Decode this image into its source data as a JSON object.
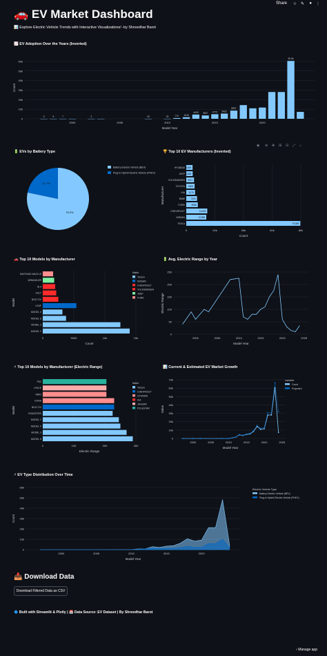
{
  "toolbar": {
    "share": "Share",
    "icons": [
      "star-icon",
      "edit-icon",
      "github-icon",
      "more-icon"
    ]
  },
  "header": {
    "title": "EV Market Dashboard",
    "subtitle": "Explore Electric Vehicle Trends with Interactive Visualizations! -by Shreedhar Barot",
    "emoji": "🚗",
    "subtitle_emoji": "📊"
  },
  "sections": {
    "adoption": "EV Adoption Over the Years (Inverted)",
    "battery": "EVs by Battery Type",
    "manufacturers": "Top 10 EV Manufacturers (Inverted)",
    "models": "Top 10 Models by Manufacturer",
    "range_by_year": "Avg. Electric Range by Year",
    "models_range": "Top 10 Models by Manufacturer (Electric Range)",
    "growth": "Current & Estimated EV Market Growth",
    "type_dist": "EV Type Distribution Over Time"
  },
  "download": {
    "heading": "Download Data",
    "button": "Download Filtered Data as CSV"
  },
  "footer": "Built with Streamlit & Plotly | 📅 Data Source: EV Dataset | By Shreedhar Barot",
  "manage_app": "Manage app",
  "colors": {
    "bg": "#0e1117",
    "light_blue": "#83c9ff",
    "blue": "#0068c9",
    "red": "#ff2b2b",
    "pink": "#ff8e8e",
    "green": "#29b09d",
    "teal": "#7defa1"
  },
  "chart_data": [
    {
      "id": "adoption",
      "type": "bar",
      "xlabel": "Model Year",
      "ylabel": "Count",
      "x": [
        1997,
        1998,
        1999,
        2000,
        2002,
        2003,
        2008,
        2010,
        2011,
        2012,
        2013,
        2014,
        2015,
        2016,
        2017,
        2018,
        2019,
        2020,
        2021,
        2022,
        2023,
        2024
      ],
      "values": [
        3,
        5,
        7,
        1,
        2,
        1,
        20,
        23,
        772,
        1616,
        4409,
        3507,
        4775,
        5432,
        8537,
        14286,
        10936,
        11740,
        28000,
        28000,
        60500,
        7200
      ],
      "labels": [
        "3",
        "5",
        "7",
        "",
        "2",
        "",
        "20",
        "23",
        "772",
        "1616",
        "4409",
        "3507",
        "4775",
        "5432",
        "8537",
        "",
        "",
        "",
        "",
        "",
        "60.5k",
        ""
      ],
      "xticks": [
        2000,
        2005,
        2010,
        2015,
        2020
      ],
      "yticks": [
        "0",
        "10k",
        "20k",
        "30k",
        "40k",
        "50k",
        "60k"
      ],
      "ylim": [
        0,
        65000
      ]
    },
    {
      "id": "battery",
      "type": "pie",
      "slices": [
        {
          "name": "Battery Electric Vehicle (BEV)",
          "value": 78.3,
          "label": "78.3%",
          "color": "#83c9ff"
        },
        {
          "name": "Plug-in Hybrid Electric Vehicle (PHEV)",
          "value": 21.7,
          "label": "21.7%",
          "color": "#0068c9"
        }
      ]
    },
    {
      "id": "manufacturers",
      "type": "bar",
      "orientation": "h",
      "xlabel": "Count",
      "ylabel": "Manufacturer",
      "categories": [
        "HYUNDAI",
        "JEEP",
        "VOLKSWAGEN",
        "TOYOTA",
        "KIA",
        "BMW",
        "FORD",
        "CHEVROLET",
        "NISSAN",
        "TESLA"
      ],
      "values": [
        4406,
        4483,
        5421,
        5828,
        6175,
        7540,
        8086,
        14690,
        13998,
        79659
      ],
      "labels": [
        "4406",
        "4483",
        "5421",
        "5828",
        "6175",
        "7540",
        "8086",
        "14,690",
        "13,998",
        "79,659"
      ],
      "xticks": [
        "0",
        "20k",
        "40k",
        "60k",
        "80k"
      ],
      "xlim": [
        0,
        80000
      ]
    },
    {
      "id": "models",
      "type": "bar",
      "orientation": "h",
      "xlabel": "Count",
      "ylabel": "Model",
      "legend_title": "Make",
      "categories": [
        "MUSTANG MACH-E",
        "WRANGLER",
        "ID.4",
        "VOLT",
        "BOLT EV",
        "LEAF",
        "MODEL X",
        "MODEL S",
        "MODEL 3",
        "MODEL Y"
      ],
      "values": [
        2000,
        2200,
        2400,
        2600,
        3000,
        6500,
        3800,
        4500,
        15000,
        16800
      ],
      "colors": [
        "#ff8e8e",
        "#7defa1",
        "#ff2b2b",
        "#ff2b2b",
        "#ff2b2b",
        "#0068c9",
        "#83c9ff",
        "#83c9ff",
        "#83c9ff",
        "#83c9ff"
      ],
      "xticks": [
        "0",
        "5000",
        "10k",
        "15k"
      ],
      "xlim": [
        0,
        18000
      ],
      "legend": [
        {
          "name": "TESLA",
          "color": "#83c9ff"
        },
        {
          "name": "NISSAN",
          "color": "#0068c9"
        },
        {
          "name": "CHEVROLET",
          "color": "#ff2b2b"
        },
        {
          "name": "VOLKSWAGEN",
          "color": "#ff2b2b"
        },
        {
          "name": "JEEP",
          "color": "#7defa1"
        },
        {
          "name": "FORD",
          "color": "#ff8e8e"
        }
      ]
    },
    {
      "id": "range_by_year",
      "type": "line",
      "xlabel": "Model Year",
      "ylabel": "Electric Range",
      "x": [
        1997,
        1998,
        1999,
        2000,
        2002,
        2003,
        2008,
        2010,
        2011,
        2012,
        2013,
        2014,
        2015,
        2016,
        2017,
        2018,
        2019,
        2020,
        2021,
        2022,
        2023,
        2024
      ],
      "y": [
        40,
        65,
        90,
        60,
        100,
        90,
        220,
        225,
        70,
        60,
        80,
        80,
        100,
        110,
        150,
        175,
        240,
        60,
        30,
        15,
        10,
        35
      ],
      "xticks": [
        2000,
        2005,
        2010,
        2015,
        2020,
        2025
      ],
      "yticks": [
        "0",
        "50",
        "100",
        "150",
        "200",
        "250"
      ],
      "ylim": [
        0,
        250
      ]
    },
    {
      "id": "models_range",
      "type": "bar",
      "orientation": "h",
      "xlabel": "Electric Range",
      "ylabel": "Model",
      "legend_title": "Make",
      "categories": [
        "PS2",
        "I-PACE",
        "NIRO",
        "KONA",
        "BOLT EV",
        "ROADSTER",
        "MODEL Y",
        "MODEL X",
        "MODEL 3",
        "MODEL S"
      ],
      "values": [
        205,
        205,
        205,
        230,
        230,
        225,
        245,
        250,
        270,
        290
      ],
      "colors": [
        "#29b09d",
        "#ffabab",
        "#ff8e8e",
        "#ff8e8e",
        "#0068c9",
        "#83c9ff",
        "#83c9ff",
        "#83c9ff",
        "#83c9ff",
        "#83c9ff"
      ],
      "xticks": [
        "0",
        "100",
        "200",
        "300"
      ],
      "xlim": [
        0,
        300
      ],
      "legend": [
        {
          "name": "TESLA",
          "color": "#83c9ff"
        },
        {
          "name": "CHEVROLET",
          "color": "#0068c9"
        },
        {
          "name": "HYUNDAI",
          "color": "#ff8e8e"
        },
        {
          "name": "KIA",
          "color": "#ff2b2b"
        },
        {
          "name": "JAGUAR",
          "color": "#ffabab"
        },
        {
          "name": "POLESTAR",
          "color": "#29b09d"
        }
      ]
    },
    {
      "id": "growth",
      "type": "line",
      "xlabel": "Model Year",
      "ylabel": "Value",
      "legend_title": "variable",
      "x": [
        1997,
        2000,
        2002,
        2008,
        2010,
        2011,
        2012,
        2013,
        2014,
        2015,
        2016,
        2017,
        2018,
        2019,
        2020,
        2021,
        2022,
        2023,
        2024
      ],
      "series": [
        {
          "name": "Count",
          "color": "#83c9ff",
          "values": [
            0,
            0,
            0,
            0,
            0,
            800,
            1600,
            4400,
            3500,
            4800,
            5400,
            8500,
            14300,
            10900,
            11700,
            28000,
            28000,
            60500,
            7200
          ]
        },
        {
          "name": "Projected",
          "color": "#0068c9",
          "values": [
            0,
            0,
            0,
            0,
            0,
            900,
            1750,
            4800,
            3850,
            5250,
            5950,
            9350,
            15700,
            12000,
            12900,
            30800,
            30800,
            66500,
            32000
          ]
        }
      ],
      "xticks": [
        2000,
        2005,
        2010,
        2015,
        2020,
        2025
      ],
      "yticks": [
        "0",
        "10k",
        "20k",
        "30k",
        "40k",
        "50k",
        "60k",
        "70k"
      ],
      "ylim": [
        0,
        70000
      ]
    },
    {
      "id": "type_dist",
      "type": "area",
      "xlabel": "Model Year",
      "ylabel": "Count",
      "legend_title": "Electric Vehicle Type",
      "x": [
        1997,
        2000,
        2002,
        2008,
        2010,
        2011,
        2012,
        2013,
        2014,
        2015,
        2016,
        2017,
        2018,
        2019,
        2020,
        2021,
        2022,
        2023,
        2024
      ],
      "series": [
        {
          "name": "Battery Electric Vehicle (BEV)",
          "color": "#83c9ff",
          "values": [
            0,
            0,
            0,
            20,
            23,
            700,
            800,
            3000,
            2200,
            3500,
            4000,
            6500,
            11000,
            8500,
            9500,
            22000,
            22000,
            50000,
            5000
          ]
        },
        {
          "name": "Plug-in Hybrid Electric Vehicle (PHEV)",
          "color": "#0068c9",
          "values": [
            0,
            0,
            0,
            0,
            0,
            300,
            800,
            1400,
            1300,
            1300,
            1400,
            2000,
            3300,
            2400,
            2200,
            6000,
            6000,
            10500,
            2200
          ]
        }
      ],
      "xticks": [
        2000,
        2005,
        2010,
        2015,
        2020
      ],
      "yticks": [
        "0",
        "10k",
        "20k",
        "30k",
        "40k",
        "50k",
        "60k"
      ],
      "ylim": [
        0,
        62000
      ]
    }
  ]
}
